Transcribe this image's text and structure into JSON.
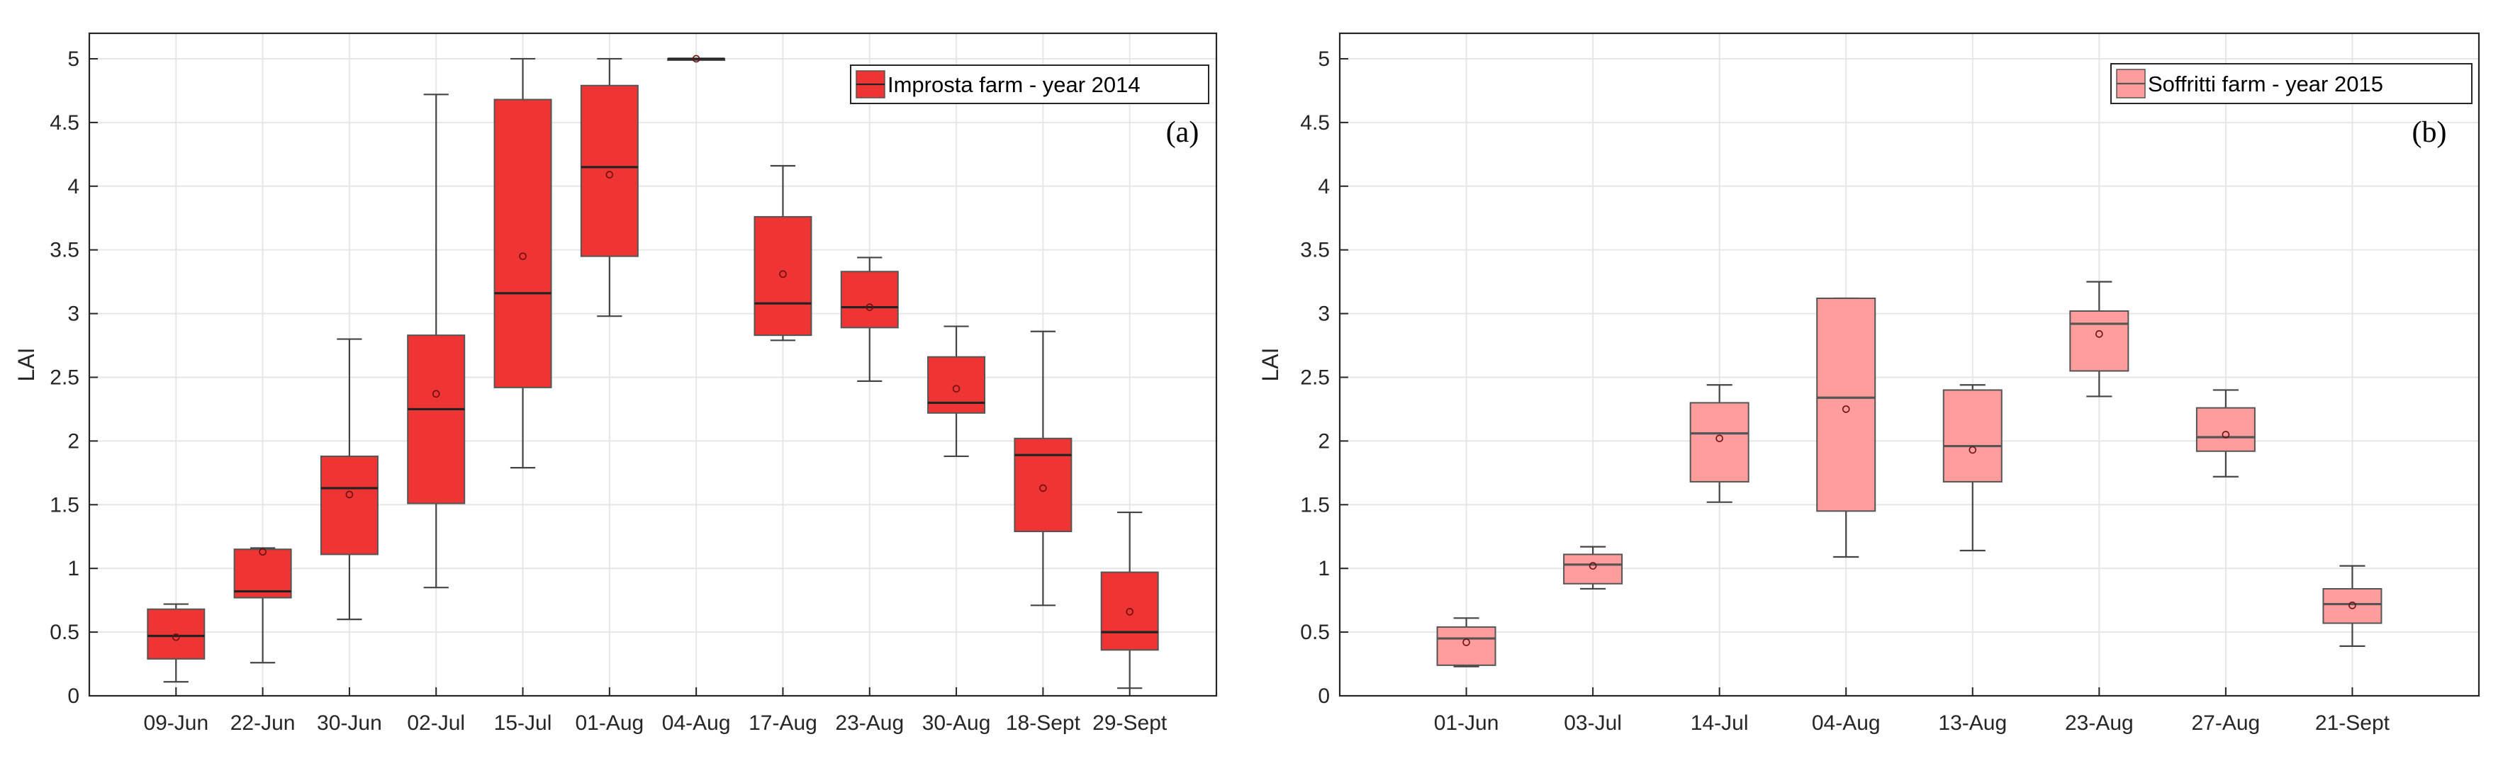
{
  "chart_data": [
    {
      "type": "box",
      "panel_tag": "(a)",
      "legend": "Improsta farm - year 2014",
      "legend_position": "top-right",
      "ylabel": "LAI",
      "xlabel": "",
      "ylim": [
        0,
        5.2
      ],
      "yticks": [
        0,
        0.5,
        1,
        1.5,
        2,
        2.5,
        3,
        3.5,
        4,
        4.5,
        5
      ],
      "ytick_labels": [
        "0",
        "0.5",
        "1",
        "1.5",
        "2",
        "2.5",
        "3",
        "3.5",
        "4",
        "4.5",
        "5"
      ],
      "grid": true,
      "box_color": "#EF3434",
      "median_color": "#222222",
      "categories": [
        "09-Jun",
        "22-Jun",
        "30-Jun",
        "02-Jul",
        "15-Jul",
        "01-Aug",
        "04-Aug",
        "17-Aug",
        "23-Aug",
        "30-Aug",
        "18-Sept",
        "29-Sept"
      ],
      "boxes": [
        {
          "min": 0.11,
          "q1": 0.29,
          "median": 0.47,
          "q3": 0.68,
          "max": 0.72,
          "mean": 0.46
        },
        {
          "min": 0.26,
          "q1": 0.77,
          "median": 0.82,
          "q3": 1.15,
          "max": 1.16,
          "mean": 1.13
        },
        {
          "min": 0.6,
          "q1": 1.11,
          "median": 1.63,
          "q3": 1.88,
          "max": 2.8,
          "mean": 1.58
        },
        {
          "min": 0.85,
          "q1": 1.51,
          "median": 2.25,
          "q3": 2.83,
          "max": 4.72,
          "mean": 2.37
        },
        {
          "min": 1.79,
          "q1": 2.42,
          "median": 3.16,
          "q3": 4.68,
          "max": 5.0,
          "mean": 3.45
        },
        {
          "min": 2.98,
          "q1": 3.45,
          "median": 4.15,
          "q3": 4.79,
          "max": 5.0,
          "mean": 4.09
        },
        {
          "min": 5.0,
          "q1": 5.0,
          "median": 5.0,
          "q3": 5.0,
          "max": 5.0,
          "mean": 5.0
        },
        {
          "min": 2.79,
          "q1": 2.83,
          "median": 3.08,
          "q3": 3.76,
          "max": 4.16,
          "mean": 3.31
        },
        {
          "min": 2.47,
          "q1": 2.89,
          "median": 3.05,
          "q3": 3.33,
          "max": 3.44,
          "mean": 3.05
        },
        {
          "min": 1.88,
          "q1": 2.22,
          "median": 2.3,
          "q3": 2.66,
          "max": 2.9,
          "mean": 2.41
        },
        {
          "min": 0.71,
          "q1": 1.29,
          "median": 1.89,
          "q3": 2.02,
          "max": 2.86,
          "mean": 1.63
        },
        {
          "min": 0.06,
          "q1": 0.36,
          "median": 0.5,
          "q3": 0.97,
          "max": 1.44,
          "mean": 0.66
        }
      ]
    },
    {
      "type": "box",
      "panel_tag": "(b)",
      "legend": "Soffritti farm - year 2015",
      "legend_position": "top-right",
      "ylabel": "LAI",
      "xlabel": "",
      "ylim": [
        0,
        5.2
      ],
      "yticks": [
        0,
        0.5,
        1,
        1.5,
        2,
        2.5,
        3,
        3.5,
        4,
        4.5,
        5
      ],
      "ytick_labels": [
        "0",
        "0.5",
        "1",
        "1.5",
        "2",
        "2.5",
        "3",
        "3.5",
        "4",
        "4.5",
        "5"
      ],
      "grid": true,
      "box_color": "#FF9C9C",
      "median_color": "#555555",
      "categories": [
        "01-Jun",
        "03-Jul",
        "14-Jul",
        "04-Aug",
        "13-Aug",
        "23-Aug",
        "27-Aug",
        "21-Sept"
      ],
      "boxes": [
        {
          "min": 0.23,
          "q1": 0.24,
          "median": 0.45,
          "q3": 0.54,
          "max": 0.61,
          "mean": 0.42
        },
        {
          "min": 0.84,
          "q1": 0.88,
          "median": 1.03,
          "q3": 1.11,
          "max": 1.17,
          "mean": 1.02
        },
        {
          "min": 1.52,
          "q1": 1.68,
          "median": 2.06,
          "q3": 2.3,
          "max": 2.44,
          "mean": 2.02
        },
        {
          "min": 1.09,
          "q1": 1.45,
          "median": 2.34,
          "q3": 3.12,
          "max": 3.12,
          "mean": 2.25
        },
        {
          "min": 1.14,
          "q1": 1.68,
          "median": 1.96,
          "q3": 2.4,
          "max": 2.44,
          "mean": 1.93
        },
        {
          "min": 2.35,
          "q1": 2.55,
          "median": 2.92,
          "q3": 3.02,
          "max": 3.25,
          "mean": 2.84
        },
        {
          "min": 1.72,
          "q1": 1.92,
          "median": 2.03,
          "q3": 2.26,
          "max": 2.4,
          "mean": 2.05
        },
        {
          "min": 0.39,
          "q1": 0.57,
          "median": 0.72,
          "q3": 0.84,
          "max": 1.02,
          "mean": 0.71
        }
      ]
    }
  ]
}
